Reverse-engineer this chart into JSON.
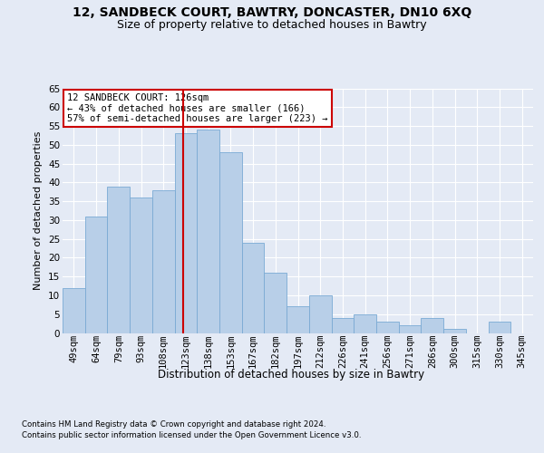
{
  "title1": "12, SANDBECK COURT, BAWTRY, DONCASTER, DN10 6XQ",
  "title2": "Size of property relative to detached houses in Bawtry",
  "xlabel": "Distribution of detached houses by size in Bawtry",
  "ylabel": "Number of detached properties",
  "categories": [
    "49sqm",
    "64sqm",
    "79sqm",
    "93sqm",
    "108sqm",
    "123sqm",
    "138sqm",
    "153sqm",
    "167sqm",
    "182sqm",
    "197sqm",
    "212sqm",
    "226sqm",
    "241sqm",
    "256sqm",
    "271sqm",
    "286sqm",
    "300sqm",
    "315sqm",
    "330sqm",
    "345sqm"
  ],
  "values": [
    12,
    31,
    39,
    36,
    38,
    53,
    54,
    48,
    24,
    16,
    7,
    10,
    4,
    5,
    3,
    2,
    4,
    1,
    0,
    3,
    0
  ],
  "bar_color": "#b8cfe8",
  "bar_edge_color": "#7aaad4",
  "vline_color": "#cc0000",
  "vline_x_index": 4.88,
  "annotation_text": "12 SANDBECK COURT: 126sqm\n← 43% of detached houses are smaller (166)\n57% of semi-detached houses are larger (223) →",
  "annotation_box_facecolor": "#ffffff",
  "annotation_box_edgecolor": "#cc0000",
  "footnote1": "Contains HM Land Registry data © Crown copyright and database right 2024.",
  "footnote2": "Contains public sector information licensed under the Open Government Licence v3.0.",
  "ylim": [
    0,
    65
  ],
  "yticks": [
    0,
    5,
    10,
    15,
    20,
    25,
    30,
    35,
    40,
    45,
    50,
    55,
    60,
    65
  ],
  "bg_color": "#e4eaf5",
  "grid_color": "#ffffff",
  "title1_fontsize": 10,
  "title2_fontsize": 9,
  "xlabel_fontsize": 8.5,
  "ylabel_fontsize": 8,
  "tick_fontsize": 7.5,
  "ann_fontsize": 7.5
}
